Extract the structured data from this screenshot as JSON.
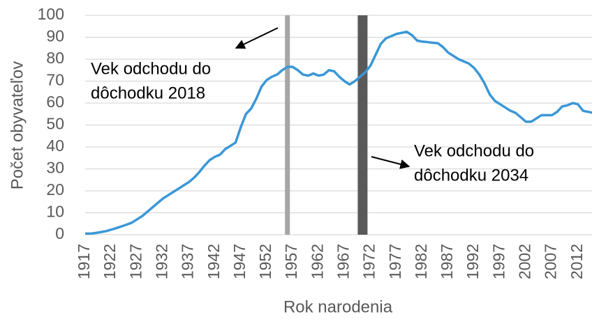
{
  "chart_data": {
    "type": "line",
    "xlabel": "Rok narodenia",
    "ylabel": "Počet obyvateľov",
    "xlim": [
      1917,
      2015
    ],
    "ylim": [
      0,
      100
    ],
    "yticks": [
      0,
      10,
      20,
      30,
      40,
      50,
      60,
      70,
      80,
      90,
      100
    ],
    "xticks": [
      1917,
      1922,
      1927,
      1932,
      1937,
      1942,
      1947,
      1952,
      1957,
      1962,
      1967,
      1972,
      1977,
      1982,
      1987,
      1992,
      1997,
      2002,
      2007,
      2012
    ],
    "grid": true,
    "x": [
      1917,
      1918,
      1919,
      1920,
      1921,
      1922,
      1923,
      1924,
      1925,
      1926,
      1927,
      1928,
      1929,
      1930,
      1931,
      1932,
      1933,
      1934,
      1935,
      1936,
      1937,
      1938,
      1939,
      1940,
      1941,
      1942,
      1943,
      1944,
      1945,
      1946,
      1947,
      1948,
      1949,
      1950,
      1951,
      1952,
      1953,
      1954,
      1955,
      1956,
      1957,
      1958,
      1959,
      1960,
      1961,
      1962,
      1963,
      1964,
      1965,
      1966,
      1967,
      1968,
      1969,
      1970,
      1971,
      1972,
      1973,
      1974,
      1975,
      1976,
      1977,
      1978,
      1979,
      1980,
      1981,
      1982,
      1983,
      1984,
      1985,
      1986,
      1987,
      1988,
      1989,
      1990,
      1991,
      1992,
      1993,
      1994,
      1995,
      1996,
      1997,
      1998,
      1999,
      2000,
      2001,
      2002,
      2003,
      2004,
      2005,
      2006,
      2007,
      2008,
      2009,
      2010,
      2011,
      2012,
      2013,
      2014,
      2015
    ],
    "series": [
      {
        "color": "#3a97d6",
        "values": [
          0.5,
          0.5,
          0.8,
          1.2,
          1.6,
          2.3,
          3,
          3.8,
          4.6,
          5.5,
          7,
          8.5,
          10.5,
          12.5,
          14.5,
          16.5,
          18,
          19.5,
          21,
          22.5,
          24,
          26,
          28.5,
          31.5,
          34,
          35.5,
          36.5,
          39,
          40.5,
          42,
          49,
          55,
          57.5,
          62,
          67.5,
          70.5,
          72,
          73,
          75,
          76.5,
          76.5,
          75,
          73,
          72.5,
          73.5,
          72.5,
          73,
          75,
          74.5,
          72,
          70,
          68.5,
          70,
          72,
          74,
          77,
          82,
          87,
          89.5,
          90.5,
          91.5,
          92,
          92.5,
          91,
          88.5,
          88,
          87.8,
          87.5,
          87.3,
          85.5,
          83,
          81.5,
          80,
          79,
          78,
          76,
          73,
          69,
          64,
          61,
          59.5,
          58,
          56.5,
          55.5,
          53.5,
          51.5,
          51.5,
          53,
          54.5,
          54.5,
          54.5,
          56,
          58.5,
          59,
          60,
          59.5,
          56.5,
          56,
          55.5
        ]
      }
    ],
    "vlines": [
      {
        "x": 1956,
        "color": "#a6a6a6"
      },
      {
        "x": 1970.5,
        "color": "#595959"
      }
    ],
    "annotations": [
      {
        "lines": [
          "Vek odchodu do",
          "dôchodku 2018"
        ]
      },
      {
        "lines": [
          "Vek odchodu do",
          "dôchodku 2034"
        ]
      }
    ]
  }
}
